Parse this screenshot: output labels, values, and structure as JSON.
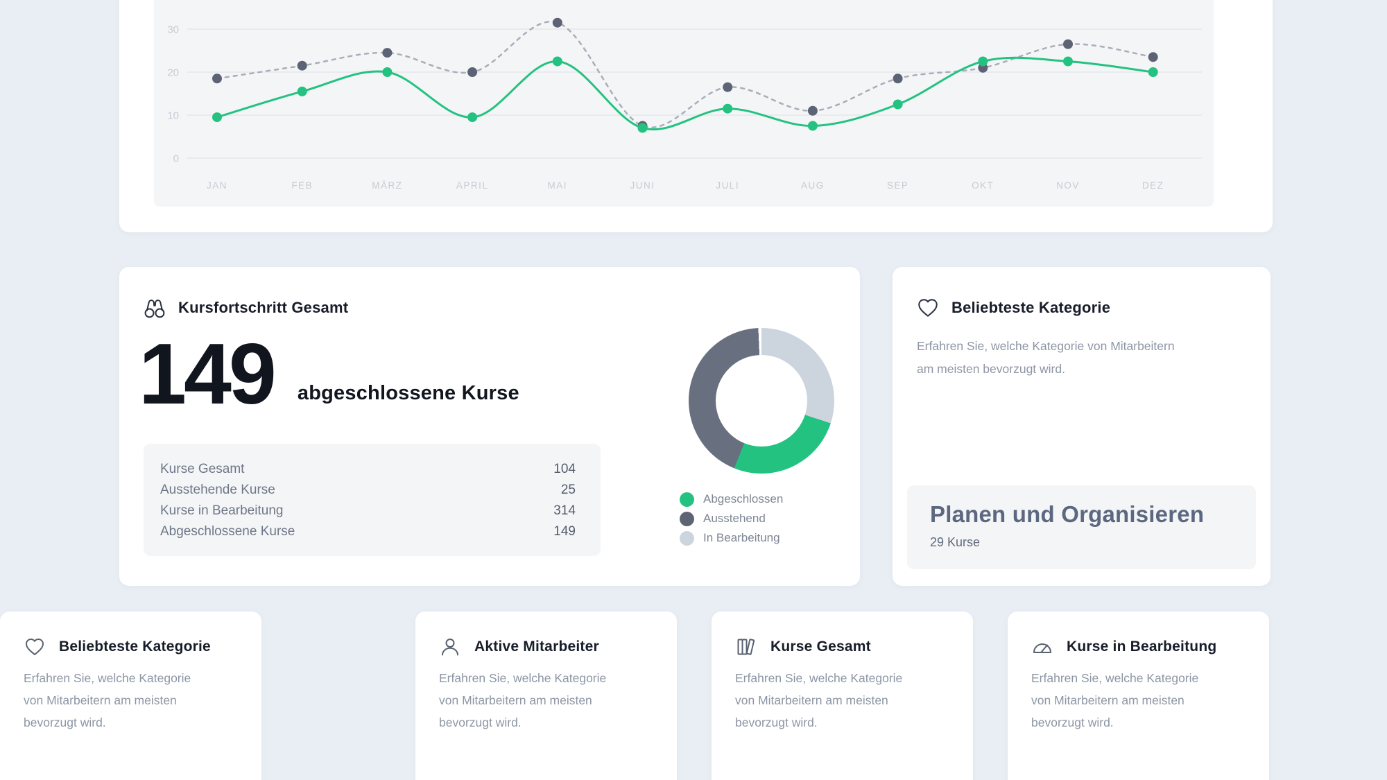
{
  "theme": {
    "page_bg": "#e9eef4",
    "card_bg": "#ffffff",
    "panel_bg": "#f4f5f7",
    "accent_green": "#24c281",
    "slate_dark": "#5c6374",
    "gray_line": "#a8aeb9",
    "axis_label": "#c6cbd4",
    "grid_line": "#e9eaee"
  },
  "chart_data": {
    "type": "line",
    "title": "",
    "xlabel": "",
    "ylabel": "",
    "categories": [
      "JAN",
      "FEB",
      "MÄRZ",
      "APRIL",
      "MAI",
      "JUNI",
      "JULI",
      "AUG",
      "SEP",
      "OKT",
      "NOV",
      "DEZ"
    ],
    "series": [
      {
        "name": "Ausstehend",
        "style": "dashed",
        "line_color": "#a8aeb9",
        "point_color": "#5c6374",
        "values": [
          18.5,
          21.5,
          24.5,
          20,
          31.5,
          7.5,
          16.5,
          11,
          18.5,
          21,
          26.5,
          23.5
        ]
      },
      {
        "name": "Abgeschlossen",
        "style": "solid",
        "line_color": "#24c281",
        "point_color": "#24c281",
        "values": [
          9.5,
          15.5,
          20,
          9.5,
          22.5,
          7,
          11.5,
          7.5,
          12.5,
          22.5,
          22.5,
          20
        ]
      }
    ],
    "yticks": [
      0,
      10,
      20,
      30
    ],
    "ylim": [
      0,
      35
    ],
    "grid": true,
    "legend_position": "none"
  },
  "progress_card": {
    "icon": "binoculars-icon",
    "title": "Kursfortschritt Gesamt",
    "big_number": "149",
    "big_label": "abgeschlossene Kurse",
    "stats": {
      "rows": [
        {
          "label": "Kurse Gesamt",
          "value": "104"
        },
        {
          "label": "Ausstehende Kurse",
          "value": "25"
        },
        {
          "label": "Kurse in Bearbeitung",
          "value": "314"
        },
        {
          "label": "Abgeschlossene Kurse",
          "value": "149"
        }
      ]
    },
    "donut": {
      "segments": [
        {
          "label": "In Bearbeitung",
          "color": "#ccd5de",
          "start_deg": 0,
          "end_deg": 108
        },
        {
          "label": "Abgeschlossen",
          "color": "#24c281",
          "start_deg": 108,
          "end_deg": 202
        },
        {
          "label": "Ausstehend",
          "color": "#68707f",
          "start_deg": 202,
          "end_deg": 357.5
        }
      ],
      "gap_color": "#ffffff"
    },
    "legend": [
      {
        "label": "Abgeschlossen",
        "color": "#24c281"
      },
      {
        "label": "Ausstehend",
        "color": "#5d6575"
      },
      {
        "label": "In Bearbeitung",
        "color": "#ccd5de"
      }
    ]
  },
  "category_card": {
    "icon": "heart-icon",
    "title": "Beliebteste Kategorie",
    "description_lines": [
      "Erfahren Sie, welche Kategorie von Mitarbeitern",
      "am meisten bevorzugt wird."
    ],
    "highlight": {
      "title": "Planen und Organisieren",
      "subtitle": "29 Kurse"
    }
  },
  "bottom_cards": [
    {
      "icon": "user-icon",
      "title": "Aktive Mitarbeiter",
      "description_lines": [
        "Erfahren Sie, welche Kategorie",
        "von Mitarbeitern am meisten",
        "bevorzugt wird."
      ]
    },
    {
      "icon": "books-icon",
      "title": "Kurse Gesamt",
      "description_lines": [
        "Erfahren Sie, welche Kategorie",
        "von Mitarbeitern am meisten",
        "bevorzugt wird."
      ]
    },
    {
      "icon": "gauge-icon",
      "title": "Kurse in Bearbeitung",
      "description_lines": [
        "Erfahren Sie, welche Kategorie",
        "von Mitarbeitern am meisten",
        "bevorzugt wird."
      ]
    },
    {
      "icon": "heart-icon",
      "title": "Beliebteste Kategorie",
      "description_lines": [
        "Erfahren Sie, welche Kategorie",
        "von Mitarbeitern am meisten",
        "bevorzugt wird."
      ]
    }
  ]
}
